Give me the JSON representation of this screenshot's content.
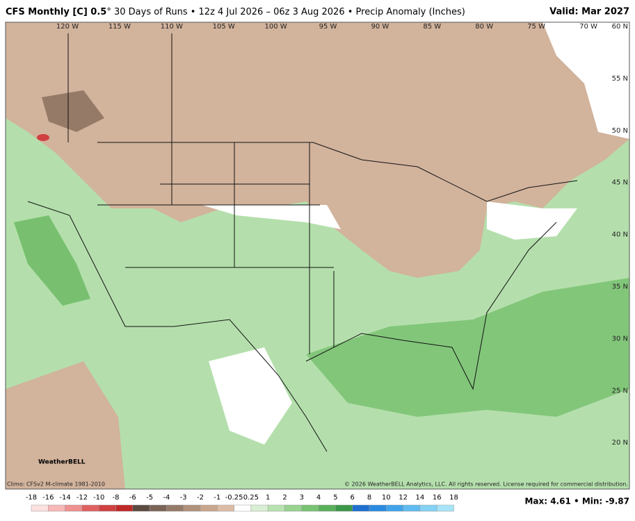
{
  "header": {
    "model": "CFS Monthly [C] 0.5",
    "description": "° 30 Days of Runs • 12z 4 Jul 2026 – 06z 3 Aug 2026 • Precip Anomaly (Inches)",
    "valid": "Valid: Mar 2027"
  },
  "longitudes": [
    "120 W",
    "115 W",
    "110 W",
    "105 W",
    "100 W",
    "95 W",
    "90 W",
    "85 W",
    "80 W",
    "75 W",
    "70 W"
  ],
  "latitudes": [
    "60 N",
    "55 N",
    "50 N",
    "45 N",
    "40 N",
    "35 N",
    "30 N",
    "25 N",
    "20 N"
  ],
  "logo": "WeatherBELL",
  "footer": {
    "climo": "Climo: CFSv2 M-climate 1981-2010",
    "copyright": "© 2026 WeatherBELL Analytics, LLC. All rights reserved. License required for commercial distribution.",
    "stats": "Max: 4.61 • Min: -9.87"
  },
  "colorbar": {
    "labels": [
      "-18",
      "-16",
      "-14",
      "-12",
      "-10",
      "-8",
      "-6",
      "-5",
      "-4",
      "-3",
      "-2",
      "-1",
      "-0.25",
      "0.25",
      "1",
      "2",
      "3",
      "4",
      "5",
      "6",
      "8",
      "10",
      "12",
      "14",
      "16",
      "18"
    ],
    "colors": [
      "#fde0e0",
      "#f8b8b8",
      "#f09090",
      "#e06060",
      "#d04040",
      "#c02828",
      "#5a4a40",
      "#7a6456",
      "#957a68",
      "#b0927c",
      "#c8a68e",
      "#dcbca6",
      "#ffffff",
      "#d8efd3",
      "#b8e2b0",
      "#98d390",
      "#78c372",
      "#58b05a",
      "#3a9848",
      "#1e6fd0",
      "#2a8ae0",
      "#40a4ea",
      "#60bcf0",
      "#84d2f4",
      "#a8e4f8"
    ]
  }
}
